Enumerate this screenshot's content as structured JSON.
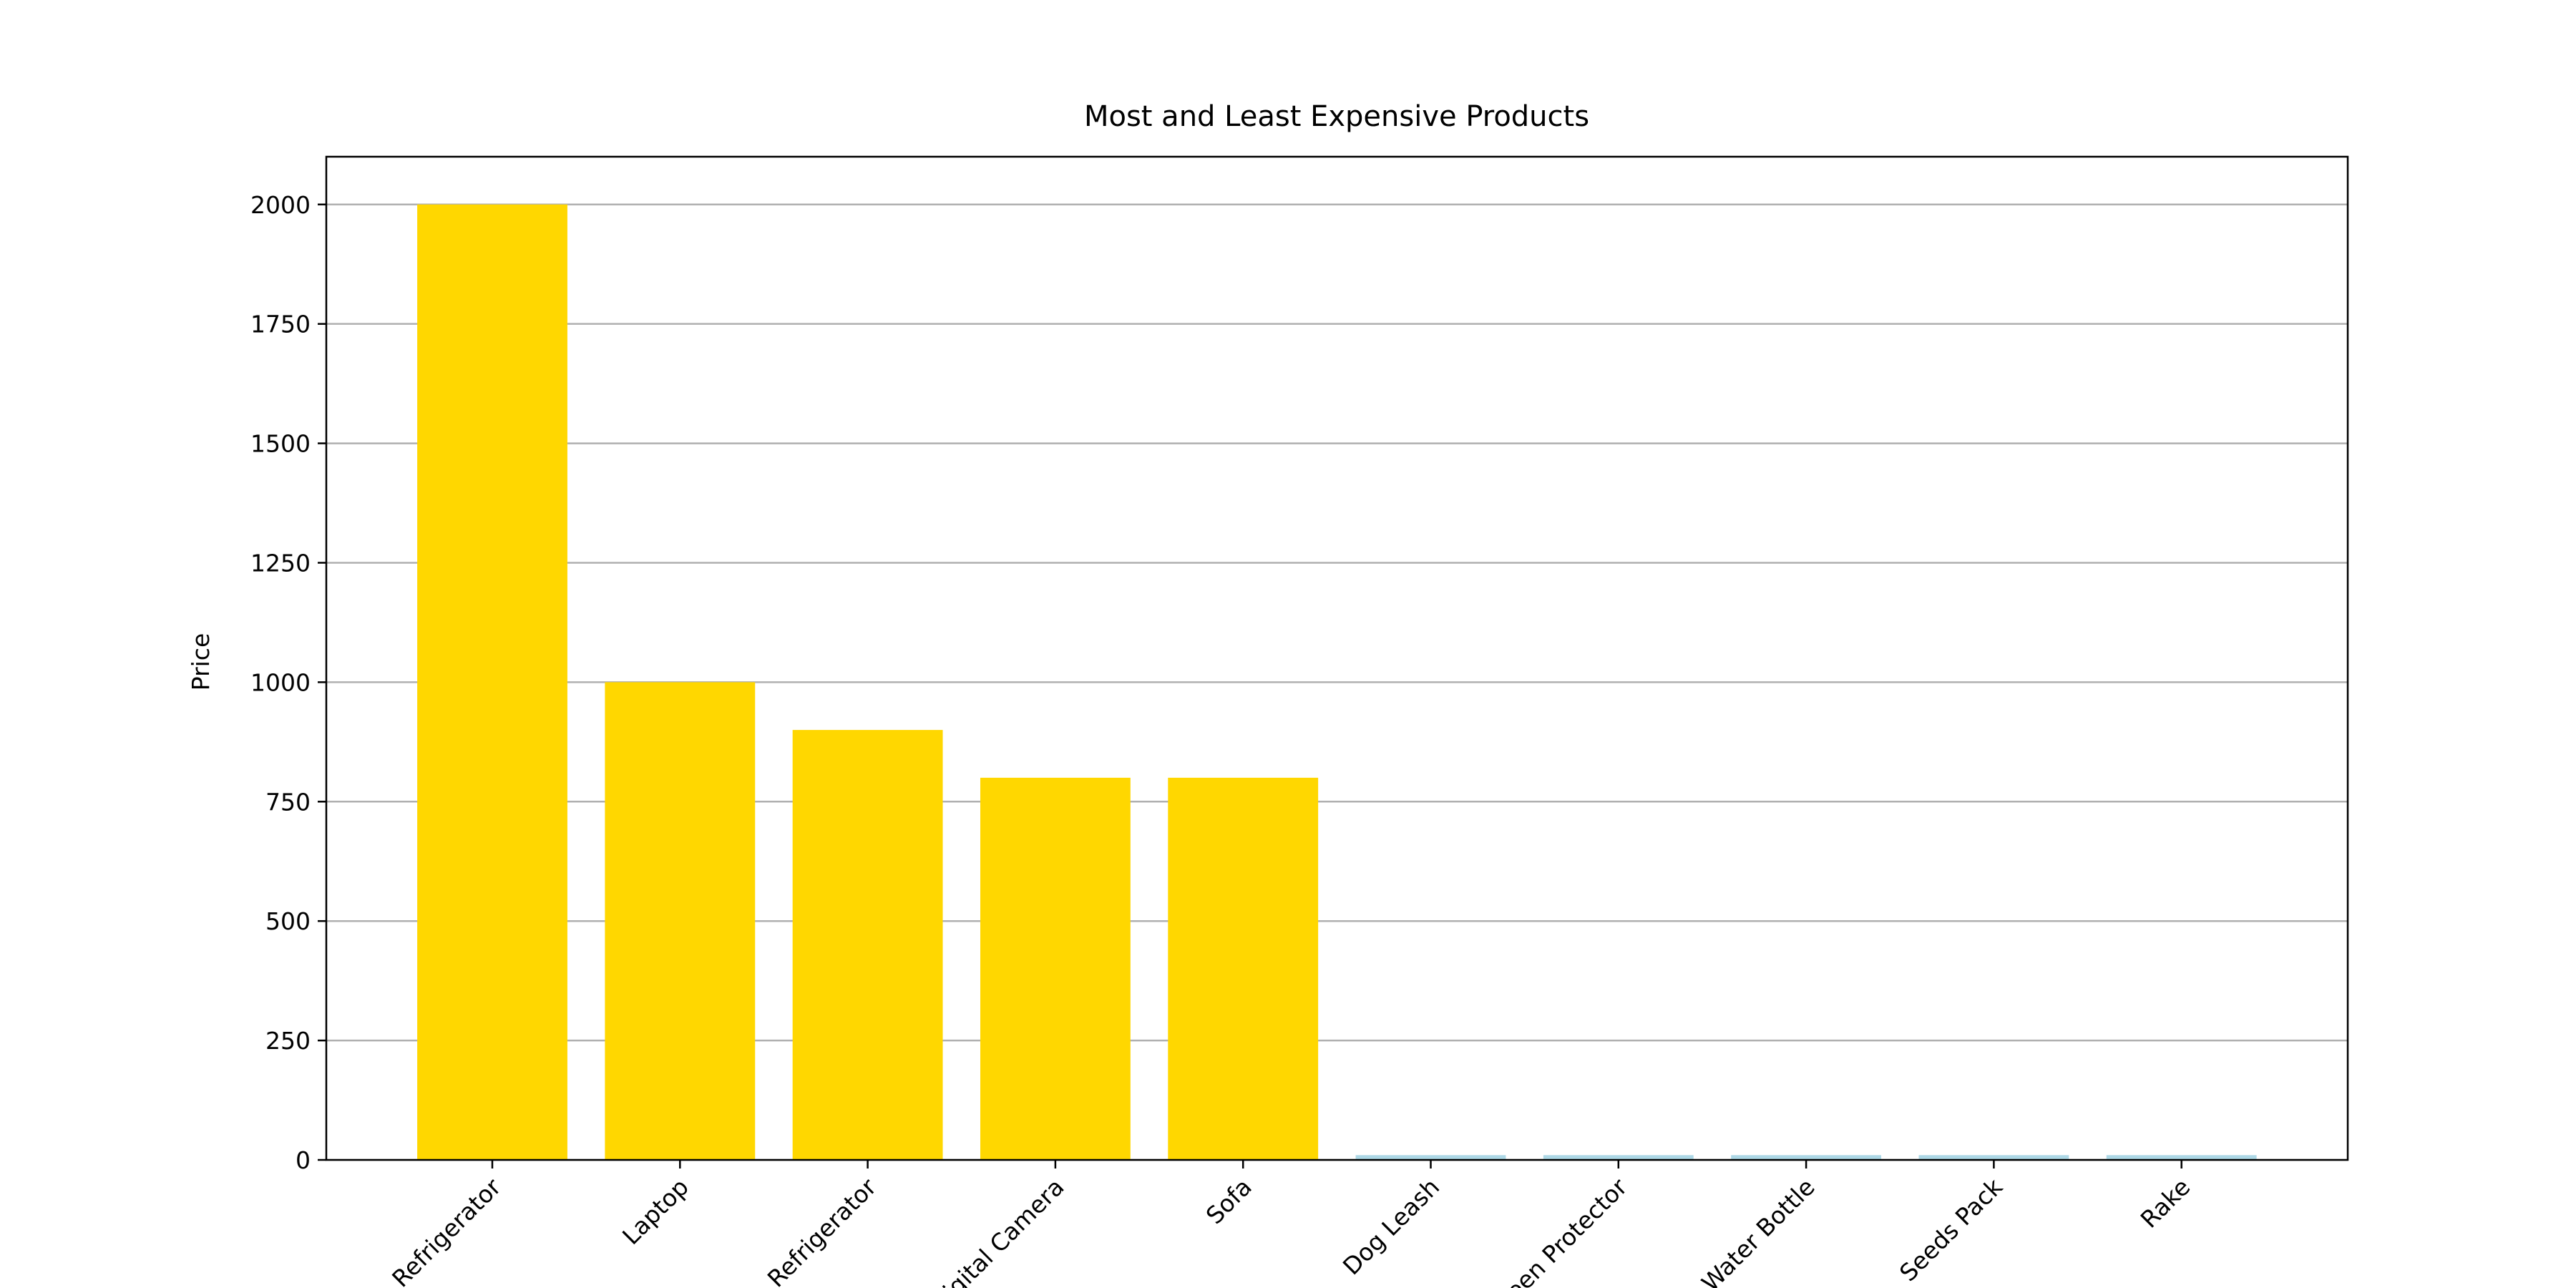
{
  "chart_data": {
    "type": "bar",
    "title": "Most and Least Expensive Products",
    "ylabel": "Price",
    "categories": [
      "Refrigerator",
      "Laptop",
      "Refrigerator",
      "Digital Camera",
      "Sofa",
      "Dog Leash",
      "Screen Protector",
      "Water Bottle",
      "Seeds Pack",
      "Rake"
    ],
    "values": [
      2000,
      1000,
      900,
      800,
      800,
      10,
      10,
      10,
      10,
      10
    ],
    "colors": [
      "#ffd700",
      "#ffd700",
      "#ffd700",
      "#ffd700",
      "#ffd700",
      "#add8e6",
      "#add8e6",
      "#add8e6",
      "#add8e6",
      "#add8e6"
    ],
    "ylim": [
      0,
      2100
    ],
    "yticks": [
      0,
      250,
      500,
      750,
      1000,
      1250,
      1500,
      1750,
      2000
    ],
    "grid": true
  }
}
